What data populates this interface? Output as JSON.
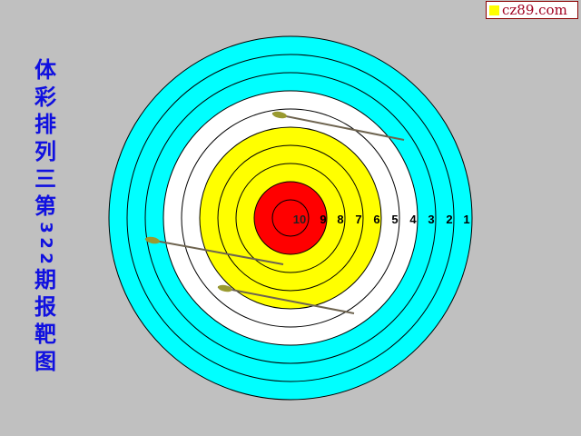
{
  "logo": {
    "text": "cz89.com",
    "square_color": "#ffff00"
  },
  "title": {
    "chars": [
      "体",
      "彩",
      "排",
      "列",
      "三",
      "第",
      "3",
      "2",
      "2",
      "期",
      "报",
      "靶",
      "图"
    ],
    "color": "#1010e0"
  },
  "target": {
    "ring_labels": [
      "10",
      "9",
      "8",
      "7",
      "6",
      "5",
      "4",
      "3",
      "2",
      "1"
    ],
    "colors": {
      "red": "#ff0000",
      "yellow": "#ffff00",
      "white": "#ffffff",
      "cyan": "#00ffff",
      "background": "#c0c0c0"
    }
  },
  "arrows": [
    {
      "name": "arrow-1"
    },
    {
      "name": "arrow-2"
    },
    {
      "name": "arrow-3"
    }
  ]
}
